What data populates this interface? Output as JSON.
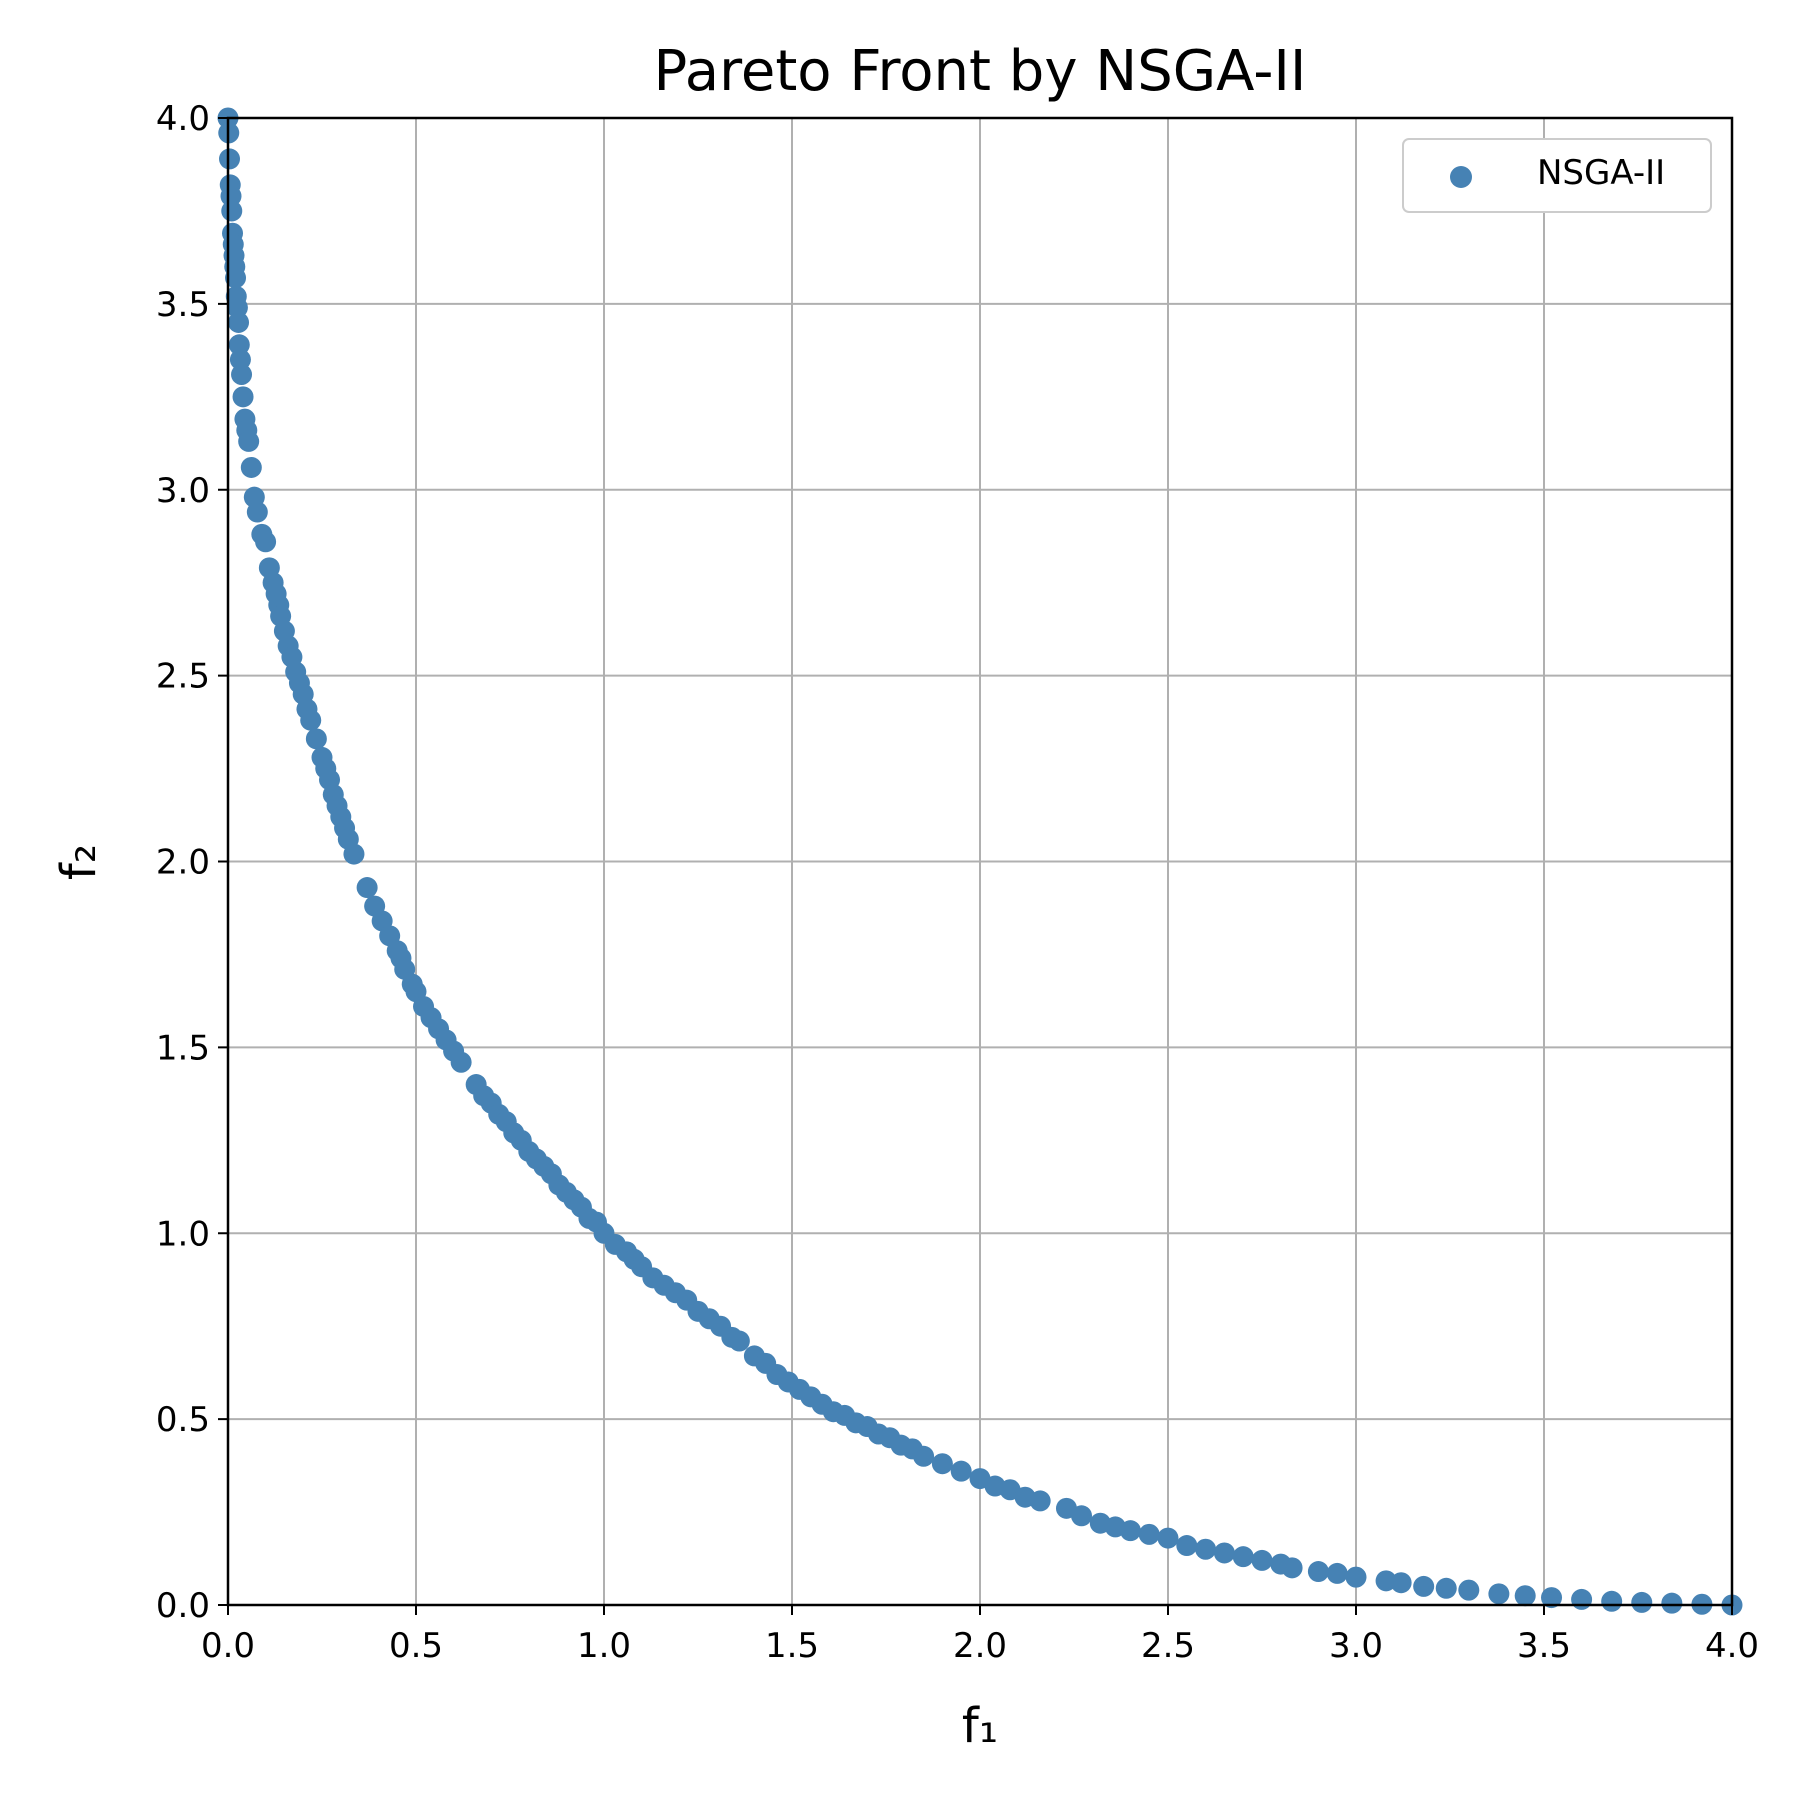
{
  "chart_data": {
    "type": "scatter",
    "title": "Pareto Front by NSGA-II",
    "xlabel": "f₁",
    "ylabel": "f₂",
    "xlim": [
      0.0,
      4.0
    ],
    "ylim": [
      0.0,
      4.0
    ],
    "xticks": [
      "0.0",
      "0.5",
      "1.0",
      "1.5",
      "2.0",
      "2.5",
      "3.0",
      "3.5",
      "4.0"
    ],
    "yticks": [
      "0.0",
      "0.5",
      "1.0",
      "1.5",
      "2.0",
      "2.5",
      "3.0",
      "3.5",
      "4.0"
    ],
    "grid": true,
    "legend_position": "upper right",
    "series": [
      {
        "name": "NSGA-II",
        "color": "#4682b4",
        "points": [
          [
            0.0,
            4.0
          ],
          [
            0.002,
            3.96
          ],
          [
            0.004,
            3.89
          ],
          [
            0.006,
            3.82
          ],
          [
            0.008,
            3.79
          ],
          [
            0.01,
            3.75
          ],
          [
            0.012,
            3.69
          ],
          [
            0.014,
            3.66
          ],
          [
            0.016,
            3.63
          ],
          [
            0.018,
            3.6
          ],
          [
            0.02,
            3.57
          ],
          [
            0.022,
            3.52
          ],
          [
            0.025,
            3.49
          ],
          [
            0.028,
            3.45
          ],
          [
            0.03,
            3.39
          ],
          [
            0.033,
            3.35
          ],
          [
            0.036,
            3.31
          ],
          [
            0.04,
            3.25
          ],
          [
            0.045,
            3.19
          ],
          [
            0.05,
            3.16
          ],
          [
            0.055,
            3.13
          ],
          [
            0.062,
            3.06
          ],
          [
            0.07,
            2.98
          ],
          [
            0.078,
            2.94
          ],
          [
            0.09,
            2.88
          ],
          [
            0.1,
            2.86
          ],
          [
            0.11,
            2.79
          ],
          [
            0.12,
            2.75
          ],
          [
            0.128,
            2.72
          ],
          [
            0.135,
            2.69
          ],
          [
            0.14,
            2.66
          ],
          [
            0.15,
            2.62
          ],
          [
            0.16,
            2.58
          ],
          [
            0.17,
            2.55
          ],
          [
            0.18,
            2.51
          ],
          [
            0.19,
            2.48
          ],
          [
            0.2,
            2.45
          ],
          [
            0.21,
            2.41
          ],
          [
            0.22,
            2.38
          ],
          [
            0.235,
            2.33
          ],
          [
            0.25,
            2.28
          ],
          [
            0.26,
            2.25
          ],
          [
            0.27,
            2.22
          ],
          [
            0.28,
            2.18
          ],
          [
            0.29,
            2.15
          ],
          [
            0.3,
            2.12
          ],
          [
            0.31,
            2.09
          ],
          [
            0.32,
            2.06
          ],
          [
            0.335,
            2.02
          ],
          [
            0.37,
            1.93
          ],
          [
            0.39,
            1.88
          ],
          [
            0.41,
            1.84
          ],
          [
            0.43,
            1.8
          ],
          [
            0.45,
            1.76
          ],
          [
            0.46,
            1.74
          ],
          [
            0.47,
            1.71
          ],
          [
            0.49,
            1.67
          ],
          [
            0.5,
            1.65
          ],
          [
            0.52,
            1.61
          ],
          [
            0.54,
            1.58
          ],
          [
            0.56,
            1.55
          ],
          [
            0.58,
            1.52
          ],
          [
            0.6,
            1.49
          ],
          [
            0.62,
            1.46
          ],
          [
            0.66,
            1.4
          ],
          [
            0.68,
            1.37
          ],
          [
            0.7,
            1.35
          ],
          [
            0.72,
            1.32
          ],
          [
            0.74,
            1.3
          ],
          [
            0.76,
            1.27
          ],
          [
            0.78,
            1.25
          ],
          [
            0.8,
            1.22
          ],
          [
            0.82,
            1.2
          ],
          [
            0.84,
            1.18
          ],
          [
            0.86,
            1.16
          ],
          [
            0.88,
            1.13
          ],
          [
            0.9,
            1.11
          ],
          [
            0.92,
            1.09
          ],
          [
            0.94,
            1.07
          ],
          [
            0.96,
            1.04
          ],
          [
            0.98,
            1.03
          ],
          [
            1.0,
            1.0
          ],
          [
            1.03,
            0.97
          ],
          [
            1.06,
            0.95
          ],
          [
            1.08,
            0.93
          ],
          [
            1.1,
            0.91
          ],
          [
            1.13,
            0.88
          ],
          [
            1.16,
            0.86
          ],
          [
            1.19,
            0.84
          ],
          [
            1.22,
            0.82
          ],
          [
            1.25,
            0.79
          ],
          [
            1.28,
            0.77
          ],
          [
            1.31,
            0.75
          ],
          [
            1.34,
            0.72
          ],
          [
            1.36,
            0.71
          ],
          [
            1.4,
            0.67
          ],
          [
            1.43,
            0.65
          ],
          [
            1.46,
            0.62
          ],
          [
            1.49,
            0.6
          ],
          [
            1.52,
            0.58
          ],
          [
            1.55,
            0.56
          ],
          [
            1.58,
            0.54
          ],
          [
            1.61,
            0.52
          ],
          [
            1.64,
            0.51
          ],
          [
            1.67,
            0.49
          ],
          [
            1.7,
            0.48
          ],
          [
            1.73,
            0.46
          ],
          [
            1.76,
            0.45
          ],
          [
            1.79,
            0.43
          ],
          [
            1.82,
            0.42
          ],
          [
            1.85,
            0.4
          ],
          [
            1.9,
            0.38
          ],
          [
            1.95,
            0.36
          ],
          [
            2.0,
            0.34
          ],
          [
            2.04,
            0.32
          ],
          [
            2.08,
            0.31
          ],
          [
            2.12,
            0.29
          ],
          [
            2.16,
            0.28
          ],
          [
            2.23,
            0.26
          ],
          [
            2.27,
            0.24
          ],
          [
            2.32,
            0.22
          ],
          [
            2.36,
            0.21
          ],
          [
            2.4,
            0.2
          ],
          [
            2.45,
            0.19
          ],
          [
            2.5,
            0.18
          ],
          [
            2.55,
            0.16
          ],
          [
            2.6,
            0.15
          ],
          [
            2.65,
            0.14
          ],
          [
            2.7,
            0.13
          ],
          [
            2.75,
            0.12
          ],
          [
            2.8,
            0.11
          ],
          [
            2.83,
            0.1
          ],
          [
            2.9,
            0.09
          ],
          [
            2.95,
            0.085
          ],
          [
            3.0,
            0.075
          ],
          [
            3.08,
            0.065
          ],
          [
            3.12,
            0.06
          ],
          [
            3.18,
            0.05
          ],
          [
            3.24,
            0.045
          ],
          [
            3.3,
            0.04
          ],
          [
            3.38,
            0.03
          ],
          [
            3.45,
            0.025
          ],
          [
            3.52,
            0.02
          ],
          [
            3.6,
            0.015
          ],
          [
            3.68,
            0.01
          ],
          [
            3.76,
            0.007
          ],
          [
            3.84,
            0.005
          ],
          [
            3.92,
            0.002
          ],
          [
            4.0,
            0.0
          ]
        ]
      }
    ]
  }
}
